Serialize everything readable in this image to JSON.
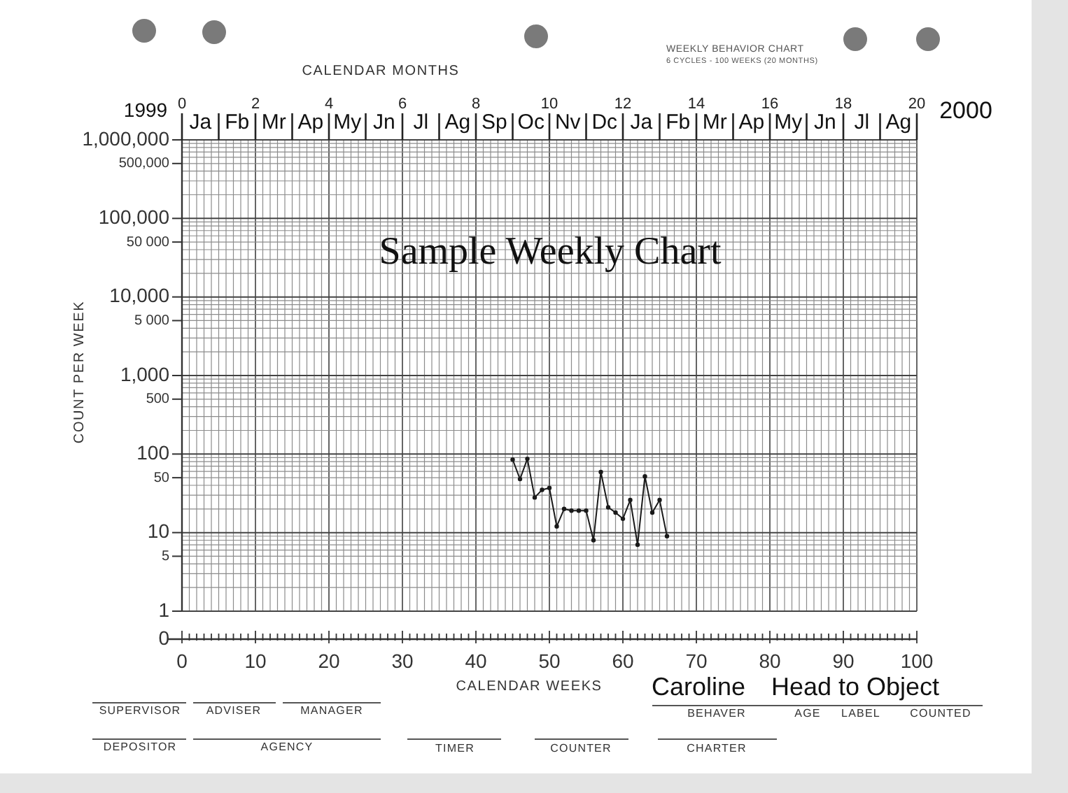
{
  "chart_data": {
    "type": "line",
    "title": "Sample Weekly Chart",
    "xlabel": "CALENDAR WEEKS",
    "ylabel": "COUNT PER WEEK",
    "x2label": "CALENDAR MONTHS",
    "annotations": [
      "Ja",
      "Fb",
      "Mr",
      "Ap",
      "My",
      "Jn",
      "Jl",
      "Ag",
      "Sp",
      "Oc",
      "Nv",
      "Dc",
      "Ja",
      "Fb",
      "Mr",
      "Ap",
      "My",
      "Jn",
      "Jl",
      "Ag",
      "1999",
      "2000",
      "WEEKLY BEHAVIOR CHART",
      "6 CYCLES - 100 WEEKS (20 MONTHS)",
      "SUPERVISOR",
      "ADVISER",
      "MANAGER",
      "BEHAVER",
      "AGE",
      "LABEL",
      "COUNTED",
      "DEPOSITOR",
      "AGENCY",
      "TIMER",
      "COUNTER",
      "CHARTER",
      "Caroline",
      "Head to Object"
    ],
    "x": [
      45,
      46,
      47,
      48,
      49,
      50,
      51,
      52,
      53,
      54,
      55,
      56,
      57,
      58,
      59,
      60,
      61,
      62,
      63,
      64,
      65,
      66
    ],
    "values": [
      85,
      48,
      87,
      28,
      35,
      37,
      12,
      20,
      19,
      19,
      19,
      8,
      59,
      21,
      18,
      15,
      26,
      7,
      52,
      18,
      26,
      9
    ],
    "color": "#1a1a1a",
    "xlim": [
      0,
      100
    ],
    "xticks": [
      0,
      {
        "value": 1,
        "label": null
      },
      {
        "value": 2,
        "label": null
      },
      {
        "value": 3,
        "label": null
      },
      {
        "value": 4,
        "label": null
      },
      {
        "value": 5,
        "label": null
      },
      {
        "value": 6,
        "label": null
      },
      {
        "value": 7,
        "label": null
      },
      {
        "value": 8,
        "label": null
      },
      {
        "value": 9,
        "label": null
      },
      10,
      {
        "value": 11,
        "label": null
      },
      {
        "value": 12,
        "label": null
      },
      {
        "value": 13,
        "label": null
      },
      {
        "value": 14,
        "label": null
      },
      {
        "value": 15,
        "label": null
      },
      {
        "value": 16,
        "label": null
      },
      {
        "value": 17,
        "label": null
      },
      {
        "value": 18,
        "label": null
      },
      {
        "value": 19,
        "label": null
      },
      20,
      {
        "value": 21,
        "label": null
      },
      {
        "value": 22,
        "label": null
      },
      {
        "value": 23,
        "label": null
      },
      {
        "value": 24,
        "label": null
      },
      {
        "value": 25,
        "label": null
      },
      {
        "value": 26,
        "label": null
      },
      {
        "value": 27,
        "label": null
      },
      {
        "value": 28,
        "label": null
      },
      {
        "value": 29,
        "label": null
      },
      30,
      {
        "value": 31,
        "label": null
      },
      {
        "value": 32,
        "label": null
      },
      {
        "value": 33,
        "label": null
      },
      {
        "value": 34,
        "label": null
      },
      {
        "value": 35,
        "label": null
      },
      {
        "value": 36,
        "label": null
      },
      {
        "value": 37,
        "label": null
      },
      {
        "value": 38,
        "label": null
      },
      {
        "value": 39,
        "label": null
      },
      40,
      {
        "value": 41,
        "label": null
      },
      {
        "value": 42,
        "label": null
      },
      {
        "value": 43,
        "label": null
      },
      {
        "value": 44,
        "label": null
      },
      {
        "value": 45,
        "label": null
      },
      {
        "value": 46,
        "label": null
      },
      {
        "value": 47,
        "label": null
      },
      {
        "value": 48,
        "label": null
      },
      {
        "value": 49,
        "label": null
      },
      50,
      {
        "value": 51,
        "label": null
      },
      {
        "value": 52,
        "label": null
      },
      {
        "value": 53,
        "label": null
      },
      {
        "value": 54,
        "label": null
      },
      {
        "value": 55,
        "label": null
      },
      {
        "value": 56,
        "label": null
      },
      {
        "value": 57,
        "label": null
      },
      {
        "value": 58,
        "label": null
      },
      {
        "value": 59,
        "label": null
      },
      60,
      {
        "value": 61,
        "label": null
      },
      {
        "value": 62,
        "label": null
      },
      {
        "value": 63,
        "label": null
      },
      {
        "value": 64,
        "label": null
      },
      {
        "value": 65,
        "label": null
      },
      {
        "value": 66,
        "label": null
      },
      {
        "value": 67,
        "label": null
      },
      {
        "value": 68,
        "label": null
      },
      {
        "value": 69,
        "label": null
      },
      70,
      {
        "value": 71,
        "label": null
      },
      {
        "value": 72,
        "label": null
      },
      {
        "value": 73,
        "label": null
      },
      {
        "value": 74,
        "label": null
      },
      {
        "value": 75,
        "label": null
      },
      {
        "value": 76,
        "label": null
      },
      {
        "value": 77,
        "label": null
      },
      {
        "value": 78,
        "label": null
      },
      {
        "value": 79,
        "label": null
      },
      80,
      {
        "value": 81,
        "label": null
      },
      {
        "value": 82,
        "label": null
      },
      {
        "value": 83,
        "label": null
      },
      {
        "value": 84,
        "label": null
      },
      {
        "value": 85,
        "label": null
      },
      {
        "value": 86,
        "label": null
      },
      {
        "value": 87,
        "label": null
      },
      {
        "value": 88,
        "label": null
      },
      {
        "value": 89,
        "label": null
      },
      90,
      {
        "value": 91,
        "label": null
      },
      {
        "value": 92,
        "label": null
      },
      {
        "value": 93,
        "label": null
      },
      {
        "value": 94,
        "label": null
      },
      {
        "value": 95,
        "label": null
      },
      {
        "value": 96,
        "label": null
      },
      {
        "value": 97,
        "label": null
      },
      {
        "value": 98,
        "label": null
      },
      {
        "value": 99,
        "label": null
      },
      100
    ],
    "ylim": [
      0.44,
      1000000
    ],
    "yticks": [
      {
        "value": 0.44,
        "label": "0"
      },
      1,
      {
        "value": 2,
        "label": null
      },
      {
        "value": 3,
        "label": null
      },
      {
        "value": 4,
        "label": null
      },
      5,
      {
        "value": 6,
        "label": null
      },
      {
        "value": 7,
        "label": null
      },
      {
        "value": 8,
        "label": null
      },
      {
        "value": 9,
        "label": null
      },
      10,
      {
        "value": 20,
        "label": null
      },
      {
        "value": 30,
        "label": null
      },
      {
        "value": 40,
        "label": null
      },
      50,
      {
        "value": 60,
        "label": null
      },
      {
        "value": 70,
        "label": null
      },
      {
        "value": 80,
        "label": null
      },
      {
        "value": 90,
        "label": null
      },
      100,
      {
        "value": 200,
        "label": null
      },
      {
        "value": 300,
        "label": null
      },
      {
        "value": 400,
        "label": null
      },
      500,
      {
        "value": 600,
        "label": null
      },
      {
        "value": 700,
        "label": null
      },
      {
        "value": 800,
        "label": null
      },
      {
        "value": 900,
        "label": null
      },
      {
        "value": 1000,
        "label": "1,000"
      },
      {
        "value": 2000,
        "label": null
      },
      {
        "value": 3000,
        "label": null
      },
      {
        "value": 4000,
        "label": null
      },
      {
        "value": 5000,
        "label": "5 000"
      },
      {
        "value": 6000,
        "label": null
      },
      {
        "value": 7000,
        "label": null
      },
      {
        "value": 8000,
        "label": null
      },
      {
        "value": 9000,
        "label": null
      },
      {
        "value": 10000,
        "label": "10,000"
      },
      {
        "value": 20000,
        "label": null
      },
      {
        "value": 30000,
        "label": null
      },
      {
        "value": 40000,
        "label": null
      },
      {
        "value": 50000,
        "label": "50 000"
      },
      {
        "value": 60000,
        "label": null
      },
      {
        "value": 70000,
        "label": null
      },
      {
        "value": 80000,
        "label": null
      },
      {
        "value": 90000,
        "label": null
      },
      {
        "value": 100000,
        "label": "100,000"
      },
      {
        "value": 200000,
        "label": null
      },
      {
        "value": 300000,
        "label": null
      },
      {
        "value": 400000,
        "label": null
      },
      {
        "value": 500000,
        "label": "500,000"
      },
      {
        "value": 600000,
        "label": null
      },
      {
        "value": 700000,
        "label": null
      },
      {
        "value": 800000,
        "label": null
      },
      {
        "value": 900000,
        "label": null
      },
      {
        "value": 1000000,
        "label": "1,000,000"
      }
    ],
    "x2lim": [
      0,
      20
    ],
    "x2ticks": [
      0,
      {
        "value": 1,
        "label": null
      },
      2,
      {
        "value": 3,
        "label": null
      },
      4,
      {
        "value": 5,
        "label": null
      },
      6,
      {
        "value": 7,
        "label": null
      },
      8,
      {
        "value": 9,
        "label": null
      },
      10,
      {
        "value": 11,
        "label": null
      },
      12,
      {
        "value": 13,
        "label": null
      },
      14,
      {
        "value": 15,
        "label": null
      },
      16,
      {
        "value": 17,
        "label": null
      },
      18,
      {
        "value": 19,
        "label": null
      },
      20
    ],
    "log": "y",
    "grid": true,
    "marker": "circle"
  }
}
